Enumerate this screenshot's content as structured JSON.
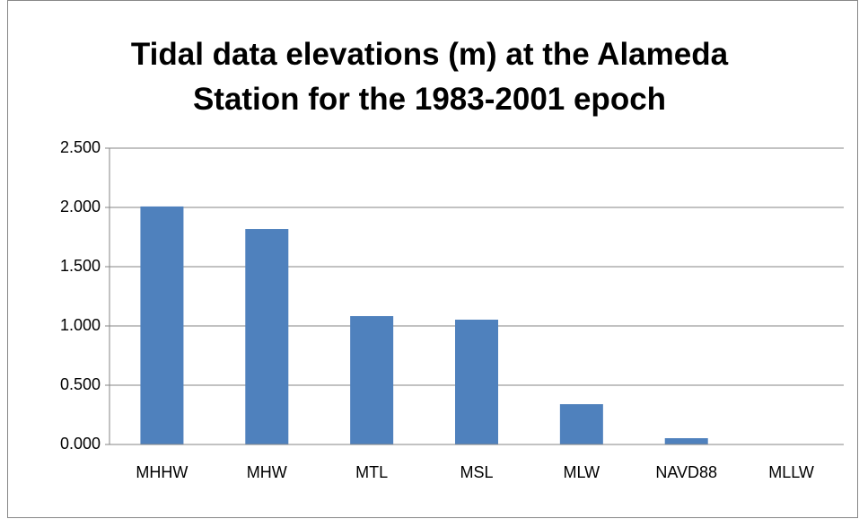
{
  "chart_data": {
    "type": "bar",
    "title": "Tidal data elevations (m) at the Alameda Station for the 1983-2001 epoch",
    "categories": [
      "MHHW",
      "MHW",
      "MTL",
      "MSL",
      "MLW",
      "NAVD88",
      "MLLW"
    ],
    "values": [
      2.008,
      1.818,
      1.083,
      1.053,
      0.34,
      0.053,
      0
    ],
    "color": "#4f81bd",
    "ylim": [
      0,
      2.5
    ],
    "yticks": [
      {
        "value": 0,
        "label": "0.000"
      },
      {
        "value": 0.5,
        "label": "0.500"
      },
      {
        "value": 1,
        "label": "1.000"
      },
      {
        "value": 1.5,
        "label": "1.500"
      },
      {
        "value": 2,
        "label": "2.000"
      },
      {
        "value": 2.5,
        "label": "2.500"
      }
    ],
    "grid": true
  }
}
